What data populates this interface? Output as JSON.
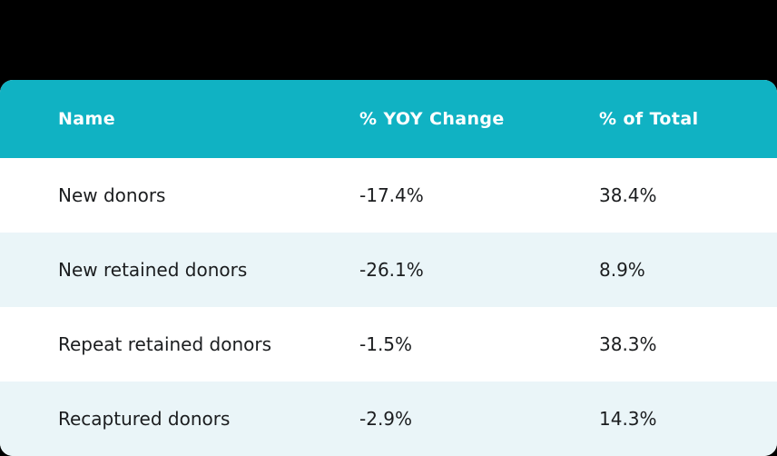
{
  "colors": {
    "page_bg": "#000000",
    "header_bg": "#10b2c3",
    "header_text": "#ffffff",
    "row_bg": "#ffffff",
    "row_alt_bg": "#eaf5f8",
    "body_text": "#1b1d1f"
  },
  "chart_data": {
    "type": "table",
    "columns": [
      "Name",
      "% YOY Change",
      "% of Total"
    ],
    "rows": [
      {
        "name": "New donors",
        "yoy_change": "-17.4%",
        "pct_of_total": "38.4%"
      },
      {
        "name": "New retained donors",
        "yoy_change": "-26.1%",
        "pct_of_total": "8.9%"
      },
      {
        "name": "Repeat retained donors",
        "yoy_change": "-1.5%",
        "pct_of_total": "38.3%"
      },
      {
        "name": "Recaptured donors",
        "yoy_change": "-2.9%",
        "pct_of_total": "14.3%"
      }
    ]
  }
}
